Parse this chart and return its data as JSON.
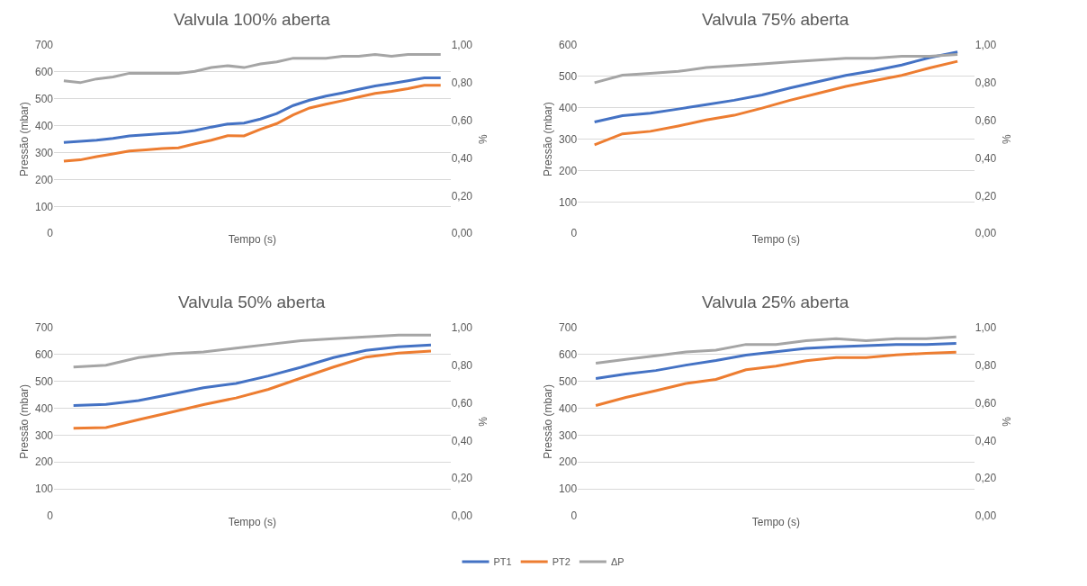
{
  "chart_data": [
    {
      "type": "line",
      "title": "Valvula 100% aberta",
      "xlabel": "Tempo (s)",
      "ylabel": "Pressão (mbar)",
      "y2label": "%",
      "categories": [
        null,
        null,
        null,
        null,
        null,
        null,
        null,
        null,
        null,
        null,
        null,
        null,
        null,
        null,
        null,
        null,
        null,
        null,
        null,
        null,
        null,
        null,
        null,
        null
      ],
      "ylim": [
        0,
        700
      ],
      "yticks": [
        0,
        100,
        200,
        300,
        400,
        500,
        600,
        700
      ],
      "y2lim": [
        0,
        1
      ],
      "y2ticks": [
        {
          "value": 0,
          "label": "0,00"
        },
        {
          "value": 0.2,
          "label": "0,20"
        },
        {
          "value": 0.4,
          "label": "0,40"
        },
        {
          "value": 0.6,
          "label": "0,60"
        },
        {
          "value": 0.8,
          "label": "0,80"
        },
        {
          "value": 1,
          "label": "1,00"
        }
      ],
      "grid": "y",
      "legend": "bottom",
      "marker": "none",
      "line_style": "solid",
      "series": [
        {
          "name": "PT1",
          "color": "#4472c4",
          "values": [
            338,
            342,
            346,
            353,
            362,
            366,
            370,
            374,
            382,
            395,
            406,
            410,
            425,
            445,
            475,
            495,
            510,
            522,
            535,
            548,
            557,
            567,
            578,
            578
          ]
        },
        {
          "name": "PT2",
          "color": "#ed7d31",
          "values": [
            268,
            273,
            285,
            295,
            306,
            310,
            315,
            318,
            333,
            346,
            363,
            362,
            387,
            408,
            440,
            466,
            480,
            493,
            507,
            520,
            528,
            538,
            550,
            550
          ]
        },
        {
          "name": "ΔP",
          "color": "#a5a5a5",
          "axis": "y2",
          "values": [
            0.81,
            0.8,
            0.82,
            0.83,
            0.85,
            0.85,
            0.85,
            0.85,
            0.86,
            0.88,
            0.89,
            0.88,
            0.9,
            0.91,
            0.93,
            0.93,
            0.93,
            0.94,
            0.94,
            0.95,
            0.94,
            0.95,
            0.95,
            0.95
          ]
        }
      ]
    },
    {
      "type": "line",
      "title": "Valvula 75% aberta",
      "xlabel": "Tempo (s)",
      "ylabel": "Pressão (mbar)",
      "y2label": "%",
      "categories": [
        null,
        null,
        null,
        null,
        null,
        null,
        null,
        null,
        null,
        null,
        null,
        null,
        null,
        null
      ],
      "ylim": [
        0,
        600
      ],
      "yticks": [
        0,
        100,
        200,
        300,
        400,
        500,
        600
      ],
      "y2lim": [
        0,
        1
      ],
      "y2ticks": [
        {
          "value": 0,
          "label": "0,00"
        },
        {
          "value": 0.2,
          "label": "0,20"
        },
        {
          "value": 0.4,
          "label": "0,40"
        },
        {
          "value": 0.6,
          "label": "0,60"
        },
        {
          "value": 0.8,
          "label": "0,80"
        },
        {
          "value": 1,
          "label": "1,00"
        }
      ],
      "grid": "y",
      "legend": "bottom",
      "marker": "none",
      "line_style": "solid",
      "series": [
        {
          "name": "PT1",
          "color": "#4472c4",
          "values": [
            355,
            375,
            383,
            396,
            410,
            424,
            441,
            463,
            483,
            503,
            518,
            536,
            560,
            578
          ]
        },
        {
          "name": "PT2",
          "color": "#ed7d31",
          "values": [
            282,
            317,
            325,
            342,
            361,
            376,
            399,
            424,
            446,
            468,
            486,
            503,
            527,
            548
          ]
        },
        {
          "name": "ΔP",
          "color": "#a5a5a5",
          "axis": "y2",
          "values": [
            0.8,
            0.84,
            0.85,
            0.86,
            0.88,
            0.89,
            0.9,
            0.91,
            0.92,
            0.93,
            0.93,
            0.94,
            0.94,
            0.95
          ]
        }
      ]
    },
    {
      "type": "line",
      "title": "Valvula 50% aberta",
      "xlabel": "Tempo (s)",
      "ylabel": "Pressão (mbar)",
      "y2label": "%",
      "categories": [
        null,
        null,
        null,
        null,
        null,
        null,
        null,
        null,
        null,
        null,
        null,
        null
      ],
      "ylim": [
        0,
        700
      ],
      "yticks": [
        0,
        100,
        200,
        300,
        400,
        500,
        600,
        700
      ],
      "y2lim": [
        0,
        1
      ],
      "y2ticks": [
        {
          "value": 0,
          "label": "0,00"
        },
        {
          "value": 0.2,
          "label": "0,20"
        },
        {
          "value": 0.4,
          "label": "0,40"
        },
        {
          "value": 0.6,
          "label": "0,60"
        },
        {
          "value": 0.8,
          "label": "0,80"
        },
        {
          "value": 1,
          "label": "1,00"
        }
      ],
      "grid": "y",
      "legend": "bottom",
      "marker": "none",
      "line_style": "solid",
      "series": [
        {
          "name": "PT1",
          "color": "#4472c4",
          "values": [
            410,
            414,
            428,
            452,
            476,
            492,
            520,
            552,
            588,
            615,
            628,
            635
          ]
        },
        {
          "name": "PT2",
          "color": "#ed7d31",
          "values": [
            325,
            328,
            357,
            385,
            413,
            438,
            470,
            512,
            553,
            590,
            605,
            612
          ]
        },
        {
          "name": "ΔP",
          "color": "#a5a5a5",
          "axis": "y2",
          "values": [
            0.79,
            0.8,
            0.84,
            0.86,
            0.87,
            0.89,
            0.91,
            0.93,
            0.94,
            0.95,
            0.96,
            0.96
          ]
        }
      ]
    },
    {
      "type": "line",
      "title": "Valvula 25% aberta",
      "xlabel": "Tempo (s)",
      "ylabel": "Pressão (mbar)",
      "y2label": "%",
      "categories": [
        null,
        null,
        null,
        null,
        null,
        null,
        null,
        null,
        null,
        null,
        null,
        null,
        null
      ],
      "ylim": [
        0,
        700
      ],
      "yticks": [
        0,
        100,
        200,
        300,
        400,
        500,
        600,
        700
      ],
      "y2lim": [
        0,
        1
      ],
      "y2ticks": [
        {
          "value": 0,
          "label": "0,00"
        },
        {
          "value": 0.2,
          "label": "0,20"
        },
        {
          "value": 0.4,
          "label": "0,40"
        },
        {
          "value": 0.6,
          "label": "0,60"
        },
        {
          "value": 0.8,
          "label": "0,80"
        },
        {
          "value": 1,
          "label": "1,00"
        }
      ],
      "grid": "y",
      "legend": "bottom",
      "marker": "none",
      "line_style": "solid",
      "series": [
        {
          "name": "PT1",
          "color": "#4472c4",
          "values": [
            510,
            527,
            540,
            560,
            577,
            597,
            610,
            622,
            628,
            632,
            637,
            637,
            641
          ]
        },
        {
          "name": "PT2",
          "color": "#ed7d31",
          "values": [
            410,
            440,
            465,
            492,
            507,
            543,
            556,
            576,
            588,
            588,
            598,
            604,
            608
          ]
        },
        {
          "name": "ΔP",
          "color": "#a5a5a5",
          "axis": "y2",
          "values": [
            0.81,
            0.83,
            0.85,
            0.87,
            0.88,
            0.91,
            0.91,
            0.93,
            0.94,
            0.93,
            0.94,
            0.94,
            0.95
          ]
        }
      ]
    }
  ]
}
